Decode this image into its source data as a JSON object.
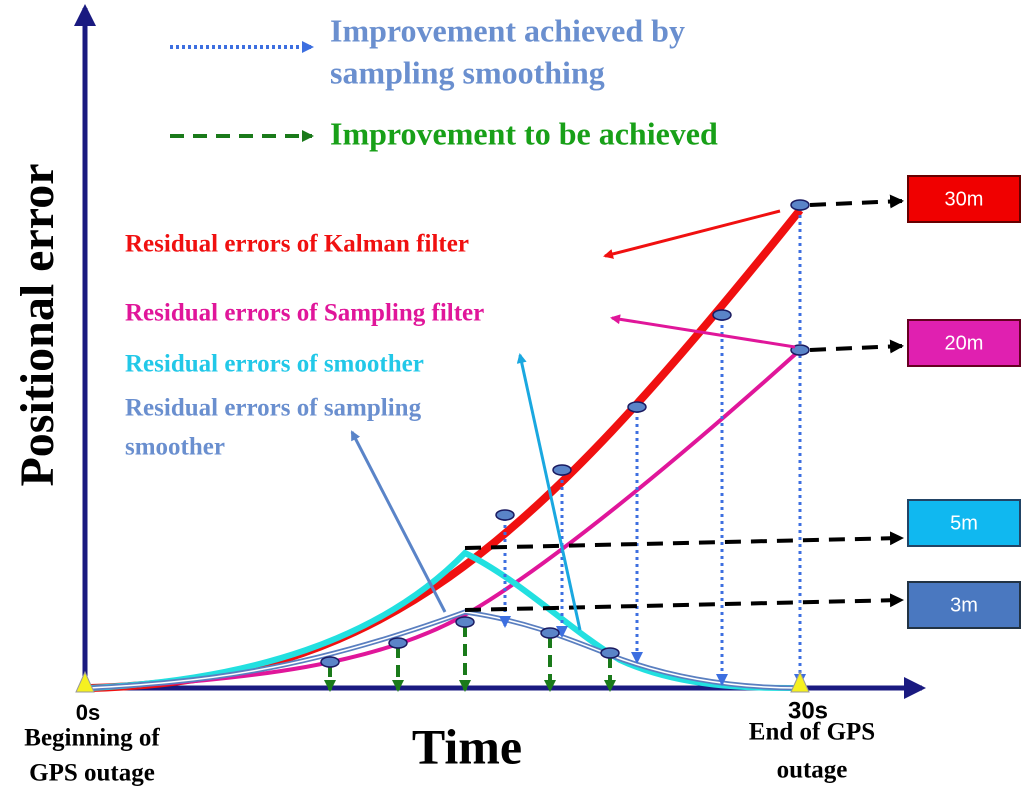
{
  "legend": {
    "items": [
      {
        "lines": [
          "Improvement achieved by",
          "sampling smoothing"
        ]
      },
      {
        "lines": [
          "Improvement to be achieved"
        ]
      }
    ]
  },
  "axes": {
    "y_label": "Positional error",
    "x_label": "Time",
    "start_tick": "0s",
    "end_tick": "30s",
    "start_note": [
      "Beginning of",
      "GPS outage"
    ],
    "end_note": [
      "End of GPS",
      "outage"
    ]
  },
  "curves": [
    {
      "lines": [
        "Residual errors of Kalman filter"
      ]
    },
    {
      "lines": [
        "Residual errors of Sampling filter"
      ]
    },
    {
      "lines": [
        "Residual errors of smoother"
      ]
    },
    {
      "lines": [
        "Residual errors of sampling",
        "smoother"
      ]
    }
  ],
  "boxes": [
    "30m",
    "20m",
    "5m",
    "3m"
  ]
}
